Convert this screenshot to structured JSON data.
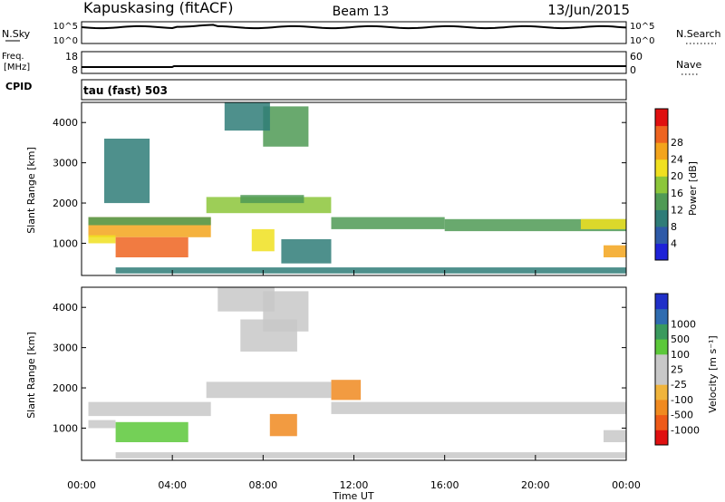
{
  "header": {
    "site": "Kapuskasing (fitACF)",
    "beam": "Beam 13",
    "date": "13/Jun/2015"
  },
  "noise_panel": {
    "left_label": "N.Sky",
    "left_ticks": [
      "10^5",
      "10^0"
    ],
    "right_label": "N.Search",
    "right_ticks": [
      "10^5",
      "10^0"
    ]
  },
  "freq_panel": {
    "left_label_1": "Freq.",
    "left_label_2": "[MHz]",
    "left_ticks": [
      "18",
      "8"
    ],
    "right_label": "Nave",
    "right_ticks": [
      "60",
      "0"
    ]
  },
  "cpid": {
    "label": "CPID",
    "value": "tau (fast) 503"
  },
  "colors": {
    "power_scale": [
      "#1e22d8",
      "#2e5aa8",
      "#2f7c78",
      "#4f9a55",
      "#8cc63a",
      "#f0e020",
      "#f3a41c",
      "#ee6420",
      "#e01010"
    ],
    "velocity_scale": [
      "#e01010",
      "#ee5a18",
      "#f08a20",
      "#f0b43c",
      "#c8c8c8",
      "#c8c8c8",
      "#5cc83a",
      "#3a9a5e",
      "#2f6cb0",
      "#2030c8"
    ]
  },
  "chart_data": [
    {
      "type": "heatmap",
      "name": "power",
      "ylabel": "Slant Range [km]",
      "yticks": [
        "1000",
        "2000",
        "3000",
        "4000"
      ],
      "ylim": [
        200,
        4500
      ],
      "xlim": [
        0,
        24
      ],
      "colorbar_label": "Power [dB]",
      "colorbar_ticks": [
        "4",
        "8",
        "12",
        "16",
        "20",
        "24",
        "28"
      ],
      "vmin": 0,
      "vmax": 32,
      "regions": [
        {
          "t0": 0.3,
          "t1": 5.7,
          "r0": 1150,
          "r1": 1650,
          "value": 22
        },
        {
          "t0": 1.5,
          "t1": 4.7,
          "r0": 650,
          "r1": 1150,
          "value": 27
        },
        {
          "t0": 0.3,
          "t1": 1.5,
          "r0": 1000,
          "r1": 1200,
          "value": 18
        },
        {
          "t0": 0.3,
          "t1": 5.7,
          "r0": 1450,
          "r1": 1650,
          "value": 14
        },
        {
          "t0": 5.5,
          "t1": 11.0,
          "r0": 1750,
          "r1": 2150,
          "value": 17
        },
        {
          "t0": 7.0,
          "t1": 9.8,
          "r0": 2000,
          "r1": 2200,
          "value": 14
        },
        {
          "t0": 11.0,
          "t1": 16.0,
          "r0": 1350,
          "r1": 1650,
          "value": 13
        },
        {
          "t0": 16.0,
          "t1": 24.0,
          "r0": 1300,
          "r1": 1600,
          "value": 12
        },
        {
          "t0": 22.0,
          "t1": 24.0,
          "r0": 1350,
          "r1": 1600,
          "value": 20
        },
        {
          "t0": 8.0,
          "t1": 10.0,
          "r0": 3400,
          "r1": 4400,
          "value": 11
        },
        {
          "t0": 6.3,
          "t1": 8.3,
          "r0": 3800,
          "r1": 4500,
          "value": 8
        },
        {
          "t0": 1.0,
          "t1": 3.0,
          "r0": 2000,
          "r1": 3600,
          "value": 9
        },
        {
          "t0": 8.8,
          "t1": 11.0,
          "r0": 500,
          "r1": 1100,
          "value": 10
        },
        {
          "t0": 7.5,
          "t1": 8.5,
          "r0": 800,
          "r1": 1350,
          "value": 21
        },
        {
          "t0": 1.5,
          "t1": 24.0,
          "r0": 250,
          "r1": 400,
          "value": 10
        },
        {
          "t0": 23.0,
          "t1": 24.0,
          "r0": 650,
          "r1": 950,
          "value": 24
        }
      ]
    },
    {
      "type": "heatmap",
      "name": "velocity",
      "xlabel": "Time UT",
      "xticks": [
        "00:00",
        "04:00",
        "08:00",
        "12:00",
        "16:00",
        "20:00",
        "00:00"
      ],
      "ylabel": "Slant Range [km]",
      "yticks": [
        "1000",
        "2000",
        "3000",
        "4000"
      ],
      "ylim": [
        200,
        4500
      ],
      "xlim": [
        0,
        24
      ],
      "colorbar_label": "Velocity [m s⁻¹]",
      "colorbar_ticks": [
        "-1000",
        "-500",
        "-100",
        "-25",
        "25",
        "100",
        "500",
        "1000"
      ],
      "regions": [
        {
          "t0": 0.3,
          "t1": 5.7,
          "r0": 1300,
          "r1": 1650,
          "value": 0
        },
        {
          "t0": 1.5,
          "t1": 4.7,
          "r0": 650,
          "r1": 1150,
          "value": 150
        },
        {
          "t0": 0.3,
          "t1": 1.5,
          "r0": 1000,
          "r1": 1200,
          "value": 80
        },
        {
          "t0": 5.5,
          "t1": 11.0,
          "r0": 1750,
          "r1": 2150,
          "value": 0
        },
        {
          "t0": 11.0,
          "t1": 24.0,
          "r0": 1350,
          "r1": 1650,
          "value": 0
        },
        {
          "t0": 7.0,
          "t1": 9.5,
          "r0": 2900,
          "r1": 3700,
          "value": 0
        },
        {
          "t0": 6.0,
          "t1": 8.5,
          "r0": 3900,
          "r1": 4500,
          "value": 0
        },
        {
          "t0": 8.0,
          "t1": 10.0,
          "r0": 3400,
          "r1": 4400,
          "value": 90
        },
        {
          "t0": 11.0,
          "t1": 12.3,
          "r0": 1700,
          "r1": 2200,
          "value": -300
        },
        {
          "t0": 8.3,
          "t1": 9.5,
          "r0": 800,
          "r1": 1350,
          "value": -200
        },
        {
          "t0": 23.0,
          "t1": 24.0,
          "r0": 650,
          "r1": 950,
          "value": 90
        },
        {
          "t0": 1.5,
          "t1": 24.0,
          "r0": 250,
          "r1": 400,
          "value": 0
        }
      ]
    }
  ]
}
